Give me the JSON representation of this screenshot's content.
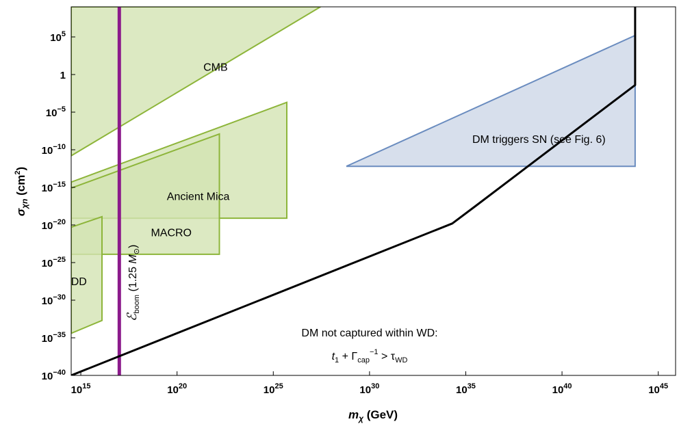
{
  "chart_data": {
    "type": "area",
    "xlabel": "m_χ (GeV)",
    "ylabel": "σ_χn (cm²)",
    "xscale": "log",
    "yscale": "log",
    "xlim_log10": [
      14.5,
      45.9
    ],
    "ylim_log10": [
      -40,
      9
    ],
    "x_ticks_log10": [
      15,
      20,
      25,
      30,
      35,
      40,
      45
    ],
    "y_ticks_log10": [
      -40,
      -35,
      -30,
      -25,
      -20,
      -15,
      -10,
      -5,
      0,
      5
    ],
    "y_tick_labels": {
      "0": "1"
    },
    "grid": false,
    "regions": [
      {
        "name": "CMB",
        "label": "CMB",
        "color": "#d3e3b3",
        "edge": "#8db53a",
        "vertices_log10": [
          [
            14.5,
            -10.8
          ],
          [
            14.5,
            9
          ],
          [
            27.45,
            9
          ]
        ],
        "label_at_log10": [
          22.0,
          0.5
        ]
      },
      {
        "name": "Ancient Mica",
        "label": "Ancient Mica",
        "color": "#d3e3b3",
        "edge": "#8db53a",
        "vertices_log10": [
          [
            14.5,
            -19.1
          ],
          [
            25.7,
            -19.1
          ],
          [
            25.7,
            -3.7
          ],
          [
            14.5,
            -14.3
          ]
        ],
        "label_at_log10": [
          21.1,
          -16.7
        ]
      },
      {
        "name": "MACRO",
        "label": "MACRO",
        "color": "#d3e3b3",
        "edge": "#8db53a",
        "vertices_log10": [
          [
            14.5,
            -23.9
          ],
          [
            22.2,
            -23.9
          ],
          [
            22.2,
            -7.9
          ],
          [
            14.5,
            -15.1
          ]
        ],
        "label_at_log10": [
          19.7,
          -21.5
        ]
      },
      {
        "name": "DD",
        "label": "DD",
        "color": "#d3e3b3",
        "edge": "#8db53a",
        "vertices_log10": [
          [
            14.5,
            -34.4
          ],
          [
            16.1,
            -32.7
          ],
          [
            16.1,
            -18.9
          ],
          [
            14.5,
            -20.3
          ]
        ],
        "label_at_log10": [
          14.9,
          -28.0
        ]
      },
      {
        "name": "DM triggers SN",
        "label": "DM triggers SN (see Fig. 6)",
        "color": "#cdd7e7",
        "edge": "#6a8cbf",
        "vertices_log10": [
          [
            28.8,
            -12.2
          ],
          [
            43.8,
            -12.2
          ],
          [
            43.8,
            5.2
          ]
        ],
        "label_at_log10": [
          38.8,
          -9.1
        ]
      }
    ],
    "lines": [
      {
        "name": "E_boom (1.25 M_sun)",
        "color": "#8b1a8b",
        "points_log10": [
          [
            17.0,
            -40
          ],
          [
            17.0,
            9
          ]
        ]
      },
      {
        "name": "capture boundary",
        "color": "#000000",
        "points_log10": [
          [
            14.5,
            -40
          ],
          [
            34.3,
            -19.8
          ],
          [
            35.5,
            -17.5
          ],
          [
            43.8,
            -1.4
          ],
          [
            43.8,
            9
          ]
        ]
      }
    ],
    "annotations": {
      "not_captured": "DM not captured within WD:",
      "condition_parts": [
        "t",
        "1",
        " + Γ",
        "cap",
        "−1",
        " > τ",
        "WD"
      ],
      "eboom_parts": [
        "ℰ",
        "boom",
        "(1.25 ",
        "M",
        "⊙",
        ")"
      ]
    }
  }
}
